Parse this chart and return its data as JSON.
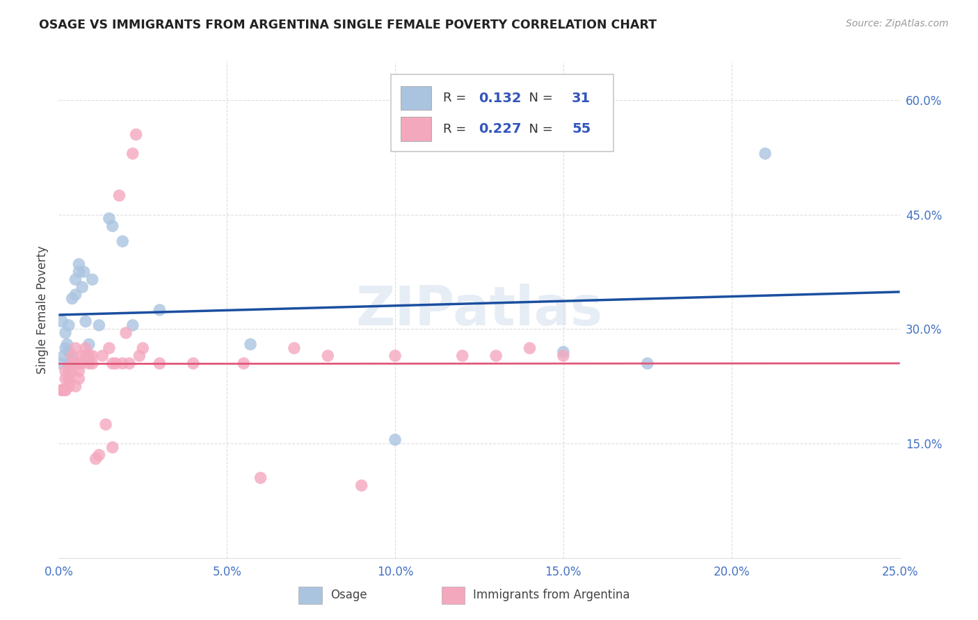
{
  "title": "OSAGE VS IMMIGRANTS FROM ARGENTINA SINGLE FEMALE POVERTY CORRELATION CHART",
  "source": "Source: ZipAtlas.com",
  "ylabel": "Single Female Poverty",
  "legend1_R": "0.132",
  "legend1_N": "31",
  "legend2_R": "0.227",
  "legend2_N": "55",
  "osage_color": "#aac4e0",
  "argentina_color": "#f4a8be",
  "osage_line_color": "#1a4fa0",
  "argentina_line_color": "#e05878",
  "legend_text_color": "#3355bb",
  "legend_R_color": "#3355bb",
  "legend_N_color": "#3355bb",
  "watermark": "ZIPatlas",
  "watermark_color": "#c8d8ea",
  "title_color": "#222222",
  "source_color": "#999999",
  "label_color": "#4472c4",
  "grid_color": "#dddddd",
  "text_color": "#444444",
  "osage_x": [
    0.0005,
    0.001,
    0.0015,
    0.002,
    0.002,
    0.0025,
    0.003,
    0.003,
    0.003,
    0.004,
    0.004,
    0.005,
    0.005,
    0.006,
    0.006,
    0.007,
    0.0075,
    0.008,
    0.009,
    0.01,
    0.012,
    0.015,
    0.016,
    0.019,
    0.022,
    0.03,
    0.057,
    0.1,
    0.15,
    0.175,
    0.21
  ],
  "osage_y": [
    0.255,
    0.31,
    0.265,
    0.275,
    0.295,
    0.28,
    0.255,
    0.27,
    0.305,
    0.26,
    0.34,
    0.345,
    0.365,
    0.375,
    0.385,
    0.355,
    0.375,
    0.31,
    0.28,
    0.365,
    0.305,
    0.445,
    0.435,
    0.415,
    0.305,
    0.325,
    0.28,
    0.155,
    0.27,
    0.255,
    0.53
  ],
  "argentina_x": [
    0.001,
    0.001,
    0.001,
    0.002,
    0.002,
    0.002,
    0.002,
    0.003,
    0.003,
    0.003,
    0.003,
    0.004,
    0.004,
    0.004,
    0.005,
    0.005,
    0.006,
    0.006,
    0.006,
    0.007,
    0.007,
    0.008,
    0.008,
    0.009,
    0.009,
    0.01,
    0.01,
    0.011,
    0.012,
    0.013,
    0.014,
    0.015,
    0.016,
    0.016,
    0.017,
    0.018,
    0.019,
    0.02,
    0.021,
    0.022,
    0.023,
    0.024,
    0.025,
    0.03,
    0.04,
    0.055,
    0.06,
    0.07,
    0.08,
    0.09,
    0.1,
    0.12,
    0.13,
    0.14,
    0.15
  ],
  "argentina_y": [
    0.22,
    0.22,
    0.22,
    0.22,
    0.235,
    0.245,
    0.22,
    0.235,
    0.225,
    0.235,
    0.245,
    0.245,
    0.255,
    0.265,
    0.225,
    0.275,
    0.235,
    0.245,
    0.255,
    0.265,
    0.255,
    0.265,
    0.275,
    0.255,
    0.265,
    0.255,
    0.265,
    0.13,
    0.135,
    0.265,
    0.175,
    0.275,
    0.255,
    0.145,
    0.255,
    0.475,
    0.255,
    0.295,
    0.255,
    0.53,
    0.555,
    0.265,
    0.275,
    0.255,
    0.255,
    0.255,
    0.105,
    0.275,
    0.265,
    0.095,
    0.265,
    0.265,
    0.265,
    0.275,
    0.265
  ],
  "xlim": [
    0,
    0.25
  ],
  "ylim": [
    0,
    0.65
  ],
  "yticks": [
    0.15,
    0.3,
    0.45,
    0.6
  ],
  "ytick_labels": [
    "15.0%",
    "30.0%",
    "45.0%",
    "60.0%"
  ],
  "xticks": [
    0.0,
    0.05,
    0.1,
    0.15,
    0.2,
    0.25
  ],
  "xtick_labels": [
    "0.0%",
    "5.0%",
    "10.0%",
    "15.0%",
    "20.0%",
    "25.0%"
  ]
}
